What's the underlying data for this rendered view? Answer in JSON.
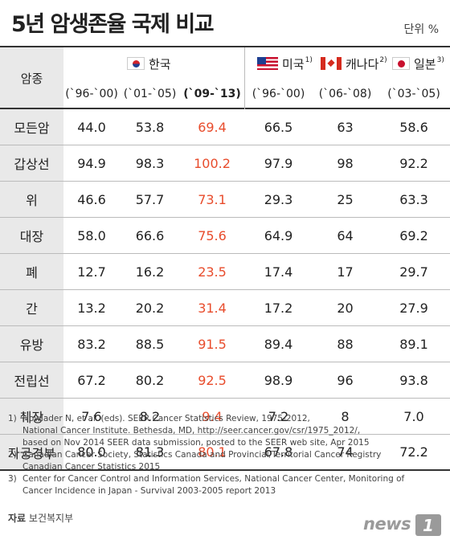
{
  "title": "5년 암생존율 국제 비교",
  "unit": "단위 %",
  "table": {
    "row_header_label": "암종",
    "countries": {
      "korea": "한국",
      "usa": "미국",
      "usa_sup": "1)",
      "canada": "캐나다",
      "canada_sup": "2)",
      "japan": "일본",
      "japan_sup": "3)"
    },
    "periods": [
      "(`96-`00)",
      "(`01-`05)",
      "(`09-`13)",
      "(`96-`00)",
      "(`06-`08)",
      "(`03-`05)"
    ],
    "rows": [
      {
        "cancer": "모든암",
        "values": [
          "44.0",
          "53.8",
          "69.4",
          "66.5",
          "63",
          "58.6"
        ]
      },
      {
        "cancer": "갑상선",
        "values": [
          "94.9",
          "98.3",
          "100.2",
          "97.9",
          "98",
          "92.2"
        ]
      },
      {
        "cancer": "위",
        "values": [
          "46.6",
          "57.7",
          "73.1",
          "29.3",
          "25",
          "63.3"
        ]
      },
      {
        "cancer": "대장",
        "values": [
          "58.0",
          "66.6",
          "75.6",
          "64.9",
          "64",
          "69.2"
        ]
      },
      {
        "cancer": "폐",
        "values": [
          "12.7",
          "16.2",
          "23.5",
          "17.4",
          "17",
          "29.7"
        ]
      },
      {
        "cancer": "간",
        "values": [
          "13.2",
          "20.2",
          "31.4",
          "17.2",
          "20",
          "27.9"
        ]
      },
      {
        "cancer": "유방",
        "values": [
          "83.2",
          "88.5",
          "91.5",
          "89.4",
          "88",
          "89.1"
        ]
      },
      {
        "cancer": "전립선",
        "values": [
          "67.2",
          "80.2",
          "92.5",
          "98.9",
          "96",
          "93.8"
        ]
      },
      {
        "cancer": "췌장",
        "values": [
          "7.6",
          "8.2",
          "9.4",
          "7.2",
          "8",
          "7.0"
        ]
      },
      {
        "cancer": "자궁경부",
        "values": [
          "80.0",
          "81.3",
          "80.1",
          "67.8",
          "74",
          "72.2"
        ]
      }
    ],
    "highlight_color": "#e84c2c"
  },
  "footnotes": [
    {
      "num": "1)",
      "lines": [
        "Howlader N, et al. (eds). SEER Cancer Statistics Review, 1975-2012,",
        "National Cancer Institute. Bethesda, MD, http://seer.cancer.gov/csr/1975_2012/,",
        "based on Nov 2014 SEER data submission, posted to the SEER web site, Apr 2015"
      ]
    },
    {
      "num": "2)",
      "lines": [
        "Canadian Cancer Society, Statistics Canada and Provincial/Territorial Cancer Registry",
        "Canadian Cancer Statistics 2015"
      ]
    },
    {
      "num": "3)",
      "lines": [
        "Center for Cancer Control and Information Services, National Cancer Center, Monitoring of",
        "Cancer Incidence in Japan - Survival 2003-2005 report 2013"
      ]
    }
  ],
  "source": {
    "label": "자료",
    "value": "보건복지부"
  },
  "logo": {
    "text": "news",
    "mark": "1"
  }
}
